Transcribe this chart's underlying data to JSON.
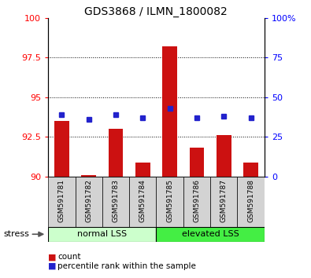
{
  "title": "GDS3868 / ILMN_1800082",
  "categories": [
    "GSM591781",
    "GSM591782",
    "GSM591783",
    "GSM591784",
    "GSM591785",
    "GSM591786",
    "GSM591787",
    "GSM591788"
  ],
  "bar_values": [
    93.5,
    90.1,
    93.0,
    90.9,
    98.2,
    91.8,
    92.6,
    90.9
  ],
  "dot_values_left": [
    93.9,
    93.6,
    93.9,
    93.7,
    94.3,
    93.7,
    93.8,
    93.7
  ],
  "bar_bottom": 90.0,
  "ylim": [
    90.0,
    100.0
  ],
  "yticks_left": [
    90,
    92.5,
    95,
    97.5,
    100
  ],
  "yticks_right": [
    0,
    25,
    50,
    75,
    100
  ],
  "bar_color": "#cc1111",
  "dot_color": "#2222cc",
  "group1_label": "normal LSS",
  "group2_label": "elevated LSS",
  "stress_label": "stress",
  "legend_bar_label": "count",
  "legend_dot_label": "percentile rank within the sample",
  "group1_color": "#ccffcc",
  "group2_color": "#44ee44",
  "sample_bg_color": "#d3d3d3",
  "title_fontsize": 10,
  "tick_fontsize": 8,
  "label_fontsize": 8
}
